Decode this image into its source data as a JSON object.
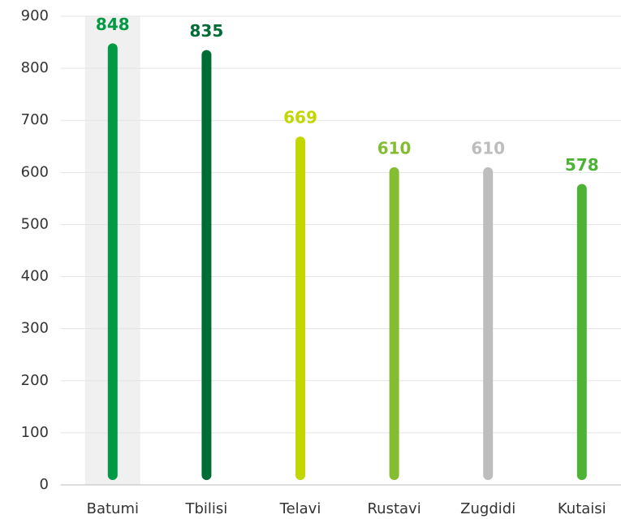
{
  "chart_data": {
    "type": "bar",
    "categories": [
      "Batumi",
      "Tbilisi",
      "Telavi",
      "Rustavi",
      "Zugdidi",
      "Kutaisi"
    ],
    "values": [
      848,
      835,
      669,
      610,
      610,
      578
    ],
    "colors": [
      "#009a44",
      "#006c35",
      "#c4d600",
      "#84bd32",
      "#bdbdbd",
      "#4cb334"
    ],
    "ylim": [
      0,
      900
    ],
    "yticks": [
      0,
      100,
      200,
      300,
      400,
      500,
      600,
      700,
      800,
      900
    ],
    "grid": true
  }
}
